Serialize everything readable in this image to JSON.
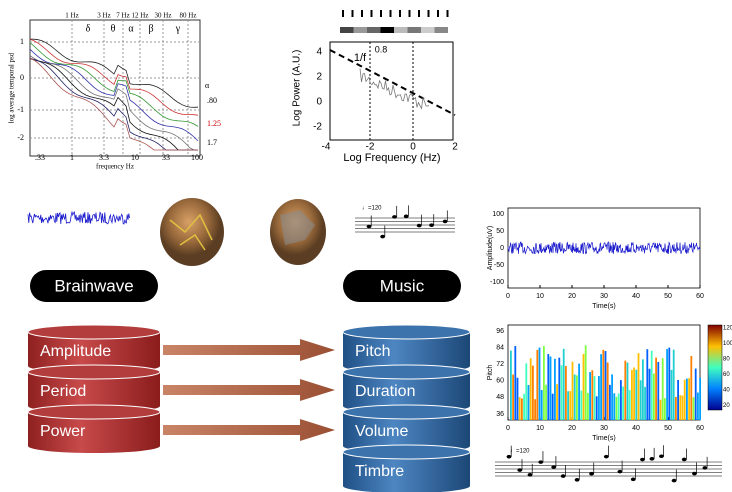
{
  "psd_plot": {
    "freq_labels": [
      "1 Hz",
      "3 Hz",
      "7 Hz",
      "12 Hz",
      "30 Hz",
      "80 Hz"
    ],
    "bands": [
      "δ",
      "θ",
      "α",
      "β",
      "γ"
    ],
    "y_label": "log average temporal psd",
    "x_label": "frequency Hz",
    "yticks": [
      1,
      0,
      -1,
      -2
    ],
    "xticks": [
      ".33",
      1,
      3.3,
      10,
      33,
      100
    ],
    "side_labels": [
      "α",
      ".80",
      1.25,
      1.7
    ]
  },
  "loglog_plot": {
    "y_label": "Log Power (A.U.)",
    "x_label": "Log Frequency (Hz)",
    "slope_label": "1/f",
    "exponent": 0.8,
    "yticks": [
      4,
      2,
      0,
      -2
    ],
    "xticks": [
      -4,
      -2,
      0,
      2
    ]
  },
  "brainwave_label": "Brainwave",
  "music_label": "Music",
  "brainwave_features": [
    "Amplitude",
    "Period",
    "Power"
  ],
  "music_features": [
    "Pitch",
    "Duration",
    "Volume",
    "Timbre"
  ],
  "tempo_mark": "♩=120",
  "amplitude_plot": {
    "y_label": "Amplitude(uV)",
    "x_label": "Time(s)",
    "yticks": [
      100,
      50,
      0,
      -50,
      -100
    ],
    "xticks": [
      0,
      10,
      20,
      30,
      40,
      50,
      60
    ]
  },
  "pitch_plot": {
    "y_label": "Pitch",
    "x_label": "Time(s)",
    "yticks": [
      96,
      84,
      72,
      60,
      48,
      36
    ],
    "xticks": [
      0,
      10,
      20,
      30,
      40,
      50,
      60
    ],
    "colorbar_ticks": [
      120,
      100,
      80,
      60,
      40,
      20
    ]
  }
}
